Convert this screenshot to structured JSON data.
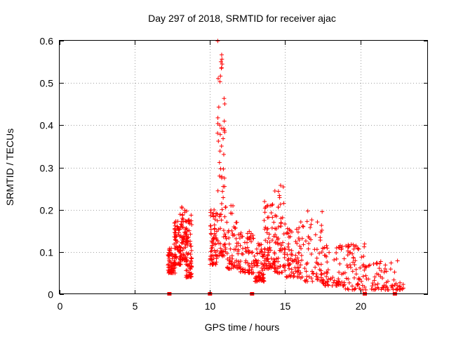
{
  "chart_data": {
    "type": "scatter",
    "title": "Day 297 of 2018, SRMTID for receiver ajac",
    "xlabel": "GPS time / hours",
    "ylabel": "SRMTID / TECUs",
    "xlim": [
      0,
      24.5
    ],
    "ylim": [
      0,
      0.6
    ],
    "xticks": [
      0,
      5,
      10,
      15,
      20
    ],
    "yticks": [
      0,
      0.1,
      0.2,
      0.3,
      0.4,
      0.5,
      0.6
    ],
    "xtick_labels": [
      "0",
      "5",
      "10",
      "15",
      "20"
    ],
    "ytick_labels": [
      "0",
      "0.1",
      "0.2",
      "0.3",
      "0.4",
      "0.5",
      "0.6"
    ],
    "grid": true,
    "marker_color": "#ff0000",
    "axis_markers_x": [
      7.3,
      10.0,
      12.8,
      20.3,
      22.3
    ],
    "series": [
      {
        "name": "SRMTID",
        "marker": "plus",
        "clusters": [
          {
            "x_range": [
              7.2,
              7.7
            ],
            "y_range": [
              0.05,
              0.11
            ]
          },
          {
            "x_range": [
              7.6,
              8.1
            ],
            "y_range": [
              0.07,
              0.18
            ]
          },
          {
            "x_range": [
              8.0,
              8.5
            ],
            "y_range": [
              0.08,
              0.21
            ]
          },
          {
            "x_range": [
              8.4,
              8.8
            ],
            "y_range": [
              0.04,
              0.19
            ]
          },
          {
            "x_range": [
              10.0,
              10.5
            ],
            "y_range": [
              0.07,
              0.2
            ]
          },
          {
            "x_range": [
              10.5,
              11.0
            ],
            "y_range": [
              0.09,
              0.6
            ]
          },
          {
            "x_range": [
              11.0,
              12.0
            ],
            "y_range": [
              0.06,
              0.21
            ]
          },
          {
            "x_range": [
              12.0,
              13.0
            ],
            "y_range": [
              0.05,
              0.15
            ]
          },
          {
            "x_range": [
              13.0,
              13.6
            ],
            "y_range": [
              0.03,
              0.12
            ]
          },
          {
            "x_range": [
              13.6,
              14.3
            ],
            "y_range": [
              0.06,
              0.22
            ]
          },
          {
            "x_range": [
              14.3,
              15.0
            ],
            "y_range": [
              0.05,
              0.26
            ]
          },
          {
            "x_range": [
              15.0,
              16.0
            ],
            "y_range": [
              0.04,
              0.16
            ]
          },
          {
            "x_range": [
              16.0,
              17.5
            ],
            "y_range": [
              0.03,
              0.2
            ]
          },
          {
            "x_range": [
              17.5,
              19.0
            ],
            "y_range": [
              0.02,
              0.12
            ]
          },
          {
            "x_range": [
              19.0,
              20.5
            ],
            "y_range": [
              0.01,
              0.12
            ]
          },
          {
            "x_range": [
              20.5,
              22.9
            ],
            "y_range": [
              0.01,
              0.08
            ]
          }
        ]
      }
    ]
  }
}
